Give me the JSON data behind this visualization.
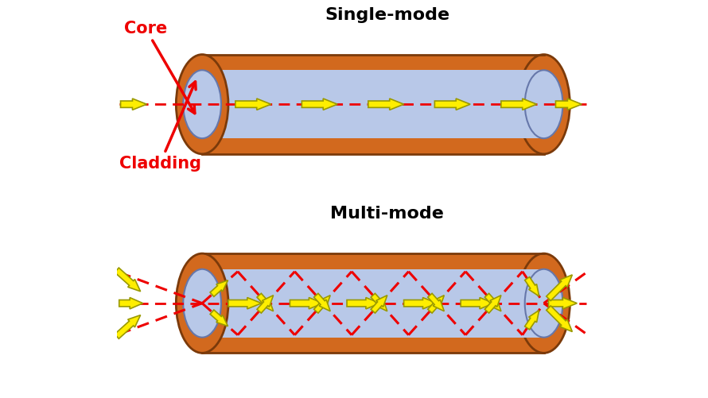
{
  "bg_color": "#ffffff",
  "cladding_color": "#D2691E",
  "cladding_color2": "#CD8530",
  "cladding_edge_color": "#7B3A0A",
  "core_color": "#b8c8e8",
  "core_edge_color": "#6677aa",
  "arrow_face": "#FFEE00",
  "arrow_edge": "#999900",
  "dash_color": "#ee0000",
  "label_core": "Core",
  "label_cladding": "Cladding",
  "label_single": "Single-mode",
  "label_multi": "Multi-mode",
  "title_fs": 16,
  "label_fs": 15
}
